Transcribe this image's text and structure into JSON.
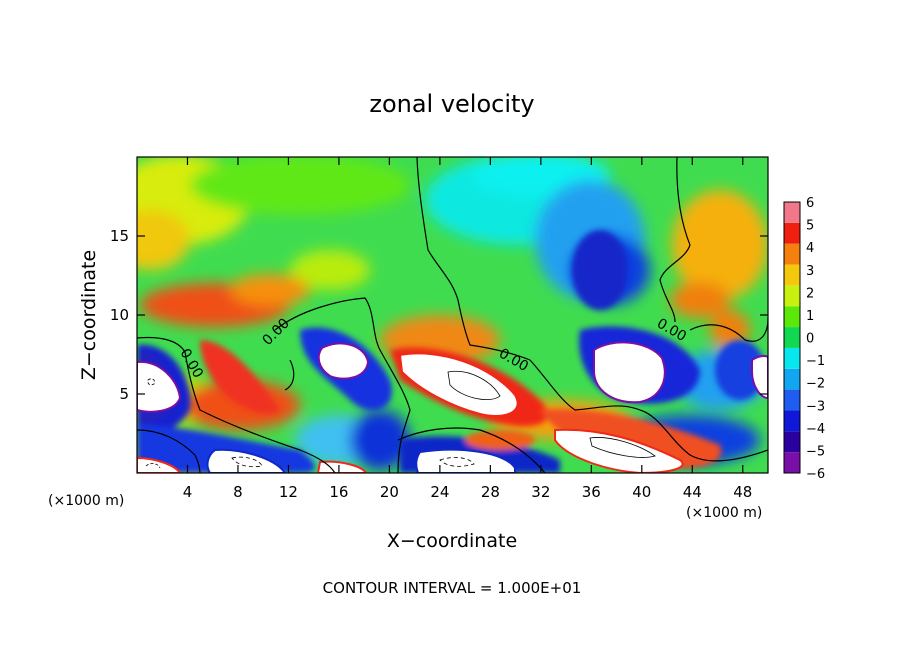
{
  "chart_data": {
    "type": "heatmap",
    "title": "zonal velocity",
    "xlabel": "X−coordinate",
    "ylabel": "Z−coordinate",
    "x_unit_label": "(×1000 m)",
    "x_unit_label_right": "(×1000 m)",
    "footer": "CONTOUR INTERVAL = 1.000E+01",
    "xlim": [
      0,
      50
    ],
    "ylim": [
      0,
      20
    ],
    "x_ticks": [
      4,
      8,
      12,
      16,
      20,
      24,
      28,
      32,
      36,
      40,
      44,
      48
    ],
    "x_tick_labels": [
      "4",
      "8",
      "12",
      "16",
      "20",
      "24",
      "28",
      "32",
      "36",
      "40",
      "44",
      "48"
    ],
    "y_ticks": [
      5,
      10,
      15
    ],
    "y_tick_labels": [
      "5",
      "10",
      "15"
    ],
    "colorbar": {
      "levels": [
        -6,
        -5,
        -4,
        -3,
        -2,
        -1,
        0,
        1,
        2,
        3,
        4,
        5,
        6
      ],
      "labels": [
        "−6",
        "−5",
        "−4",
        "−3",
        "−2",
        "−1",
        "0",
        "1",
        "2",
        "3",
        "4",
        "5",
        "6"
      ],
      "colors": [
        "#7a0fa8",
        "#2a00a0",
        "#0f18d8",
        "#1f5cf0",
        "#12a6f0",
        "#08e6f0",
        "#10d850",
        "#5ce808",
        "#c8f010",
        "#f5c810",
        "#f58010",
        "#f02010",
        "#f07888"
      ]
    },
    "out_of_range_color": "#ffffff",
    "contour_label": "0.00",
    "grid": false,
    "legend": "right (colorbar)"
  }
}
